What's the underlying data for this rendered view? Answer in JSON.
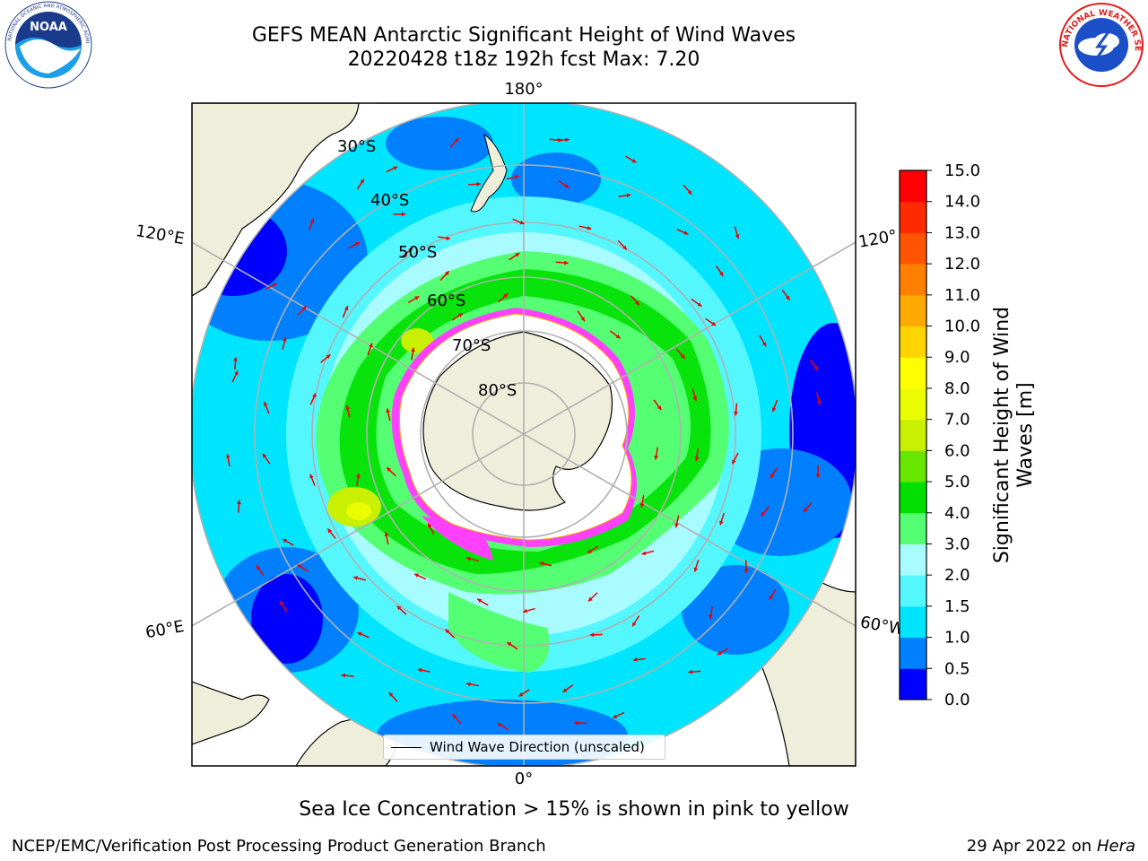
{
  "title_line1": "GEFS MEAN Antarctic Significant Height of Wind Waves",
  "title_line2": "20220428 t18z 192h fcst   Max: 7.20",
  "logos": {
    "left": "noaa-logo",
    "right": "national-weather-service-logo",
    "left_text": "NOAA",
    "right_text": "NATIONAL WEATHER SERVICE"
  },
  "map": {
    "projection": "south-polar-stereographic",
    "longitude_labels": {
      "top": "180°",
      "bottom": "0°",
      "upper_left": "120°E",
      "lower_left": "60°E",
      "upper_right": "120°",
      "lower_right": "60°W"
    },
    "latitude_labels": [
      "30°S",
      "40°S",
      "50°S",
      "60°S",
      "70°S",
      "80°S"
    ],
    "legend_text": "Wind Wave Direction (unscaled)"
  },
  "colorbar": {
    "label": "Significant Height of Wind Waves [m]",
    "label_line1": "Significant Height of Wind",
    "label_line2": "Waves [m]",
    "ticks": [
      "0.0",
      "0.5",
      "1.0",
      "1.5",
      "2.0",
      "3.0",
      "4.0",
      "5.0",
      "6.0",
      "7.0",
      "8.0",
      "9.0",
      "10.0",
      "11.0",
      "12.0",
      "13.0",
      "14.0",
      "15.0"
    ],
    "colors": [
      "#0000ff",
      "#0080ff",
      "#00e5ff",
      "#55f7ff",
      "#a8fcff",
      "#55ff73",
      "#00e000",
      "#66e600",
      "#c8f000",
      "#ecfc00",
      "#ffff00",
      "#ffd400",
      "#ffaa00",
      "#ff8000",
      "#ff5500",
      "#ff2a00",
      "#ff0000"
    ]
  },
  "subnote": "Sea Ice Concentration > 15% is shown in pink to yellow",
  "footer_left": "NCEP/EMC/Verification Post Processing Product Generation Branch",
  "footer_date": "29 Apr 2022 on ",
  "footer_host": "Hera"
}
